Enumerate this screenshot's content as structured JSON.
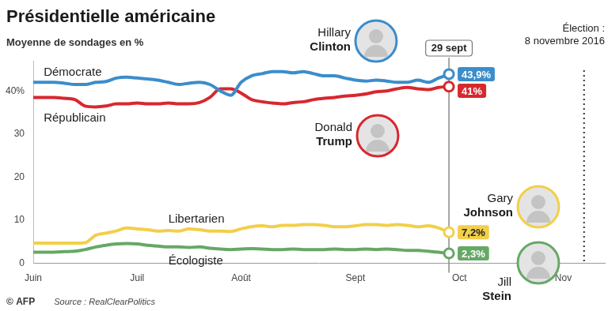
{
  "chart_data": {
    "type": "line",
    "title": "Présidentielle américaine",
    "subtitle": "Moyenne de sondages en %",
    "source": "Source : RealClearPolitics",
    "credit": "© AFP",
    "categories": [
      "Juin",
      null,
      null,
      null,
      null,
      null,
      null,
      null,
      null,
      null,
      "Juil",
      null,
      null,
      null,
      null,
      null,
      null,
      null,
      null,
      null,
      "Août",
      null,
      null,
      null,
      null,
      null,
      null,
      null,
      null,
      null,
      null,
      "Sept",
      null,
      null,
      null,
      null,
      null,
      null,
      null,
      null,
      null,
      "Oct",
      null,
      null,
      null,
      null,
      null,
      null,
      null,
      null,
      null,
      "Nov",
      null,
      null,
      null,
      null
    ],
    "ylim": [
      0,
      47
    ],
    "yticks": [
      0,
      10,
      20,
      30,
      {
        "value": 40,
        "label": "40%"
      }
    ],
    "grid": false,
    "data_labels": true,
    "annotations": [
      {
        "text": "29 sept",
        "index": 40,
        "line_style": "solid"
      },
      {
        "text": "Élection : 8 novembre 2016",
        "index": 53,
        "line_style": "dotted"
      }
    ],
    "series": [
      {
        "name": "Démocrate",
        "candidate": "Hillary Clinton",
        "color": "#3b8dcb",
        "values": [
          42.0,
          42.0,
          42.0,
          41.8,
          41.5,
          41.5,
          42.0,
          42.2,
          43.0,
          43.2,
          43.0,
          42.8,
          42.5,
          42.0,
          41.5,
          41.8,
          42.0,
          41.5,
          40.0,
          39.0,
          42.0,
          43.5,
          44.0,
          44.5,
          44.5,
          44.2,
          44.5,
          44.0,
          43.5,
          43.5,
          43.0,
          42.5,
          42.3,
          42.5,
          42.3,
          42.0,
          42.0,
          42.5,
          42.0,
          43.0,
          43.9,
          null,
          null,
          null,
          null,
          null,
          null,
          null,
          null,
          null,
          null,
          null,
          null,
          null,
          null,
          null
        ],
        "value_labels": [
          null,
          null,
          null,
          null,
          null,
          null,
          null,
          null,
          null,
          null,
          null,
          null,
          null,
          null,
          null,
          null,
          null,
          null,
          null,
          null,
          null,
          null,
          null,
          null,
          null,
          null,
          null,
          null,
          null,
          null,
          null,
          null,
          null,
          null,
          null,
          null,
          null,
          null,
          null,
          null,
          "43,9%",
          null,
          null,
          null,
          null,
          null,
          null,
          null,
          null,
          null,
          null,
          null,
          null,
          null,
          null,
          null
        ]
      },
      {
        "name": "Républicain",
        "candidate": "Donald Trump",
        "color": "#d7282f",
        "values": [
          38.5,
          38.5,
          38.5,
          38.3,
          38.0,
          36.5,
          36.3,
          36.5,
          37.0,
          37.0,
          37.2,
          37.0,
          37.0,
          37.2,
          37.0,
          37.0,
          37.3,
          38.5,
          40.5,
          40.5,
          39.5,
          38.0,
          37.5,
          37.2,
          37.0,
          37.3,
          37.5,
          38.0,
          38.3,
          38.5,
          38.8,
          39.0,
          39.3,
          39.8,
          40.0,
          40.5,
          40.8,
          40.5,
          40.3,
          40.8,
          41.0,
          null,
          null,
          null,
          null,
          null,
          null,
          null,
          null,
          null,
          null,
          null,
          null,
          null,
          null,
          null
        ],
        "value_labels": [
          null,
          null,
          null,
          null,
          null,
          null,
          null,
          null,
          null,
          null,
          null,
          null,
          null,
          null,
          null,
          null,
          null,
          null,
          null,
          null,
          null,
          null,
          null,
          null,
          null,
          null,
          null,
          null,
          null,
          null,
          null,
          null,
          null,
          null,
          null,
          null,
          null,
          null,
          null,
          null,
          "41%",
          null,
          null,
          null,
          null,
          null,
          null,
          null,
          null,
          null,
          null,
          null,
          null,
          null,
          null,
          null
        ]
      },
      {
        "name": "Libertarien",
        "candidate": "Gary Johnson",
        "color": "#f2cf4a",
        "values": [
          4.7,
          4.7,
          4.7,
          4.7,
          4.7,
          4.8,
          6.5,
          7.0,
          7.5,
          8.2,
          8.0,
          7.8,
          7.5,
          7.6,
          7.5,
          8.0,
          7.8,
          7.5,
          7.5,
          7.4,
          8.0,
          8.5,
          8.7,
          8.5,
          8.8,
          8.8,
          9.0,
          9.0,
          8.8,
          8.5,
          8.5,
          8.7,
          9.0,
          9.0,
          8.8,
          9.0,
          8.8,
          8.5,
          8.7,
          8.2,
          7.2,
          null,
          null,
          null,
          null,
          null,
          null,
          null,
          null,
          null,
          null,
          null,
          null,
          null,
          null,
          null
        ],
        "value_labels": [
          null,
          null,
          null,
          null,
          null,
          null,
          null,
          null,
          null,
          null,
          null,
          null,
          null,
          null,
          null,
          null,
          null,
          null,
          null,
          null,
          null,
          null,
          null,
          null,
          null,
          null,
          null,
          null,
          null,
          null,
          null,
          null,
          null,
          null,
          null,
          null,
          null,
          null,
          null,
          null,
          "7,2%",
          null,
          null,
          null,
          null,
          null,
          null,
          null,
          null,
          null,
          null,
          null,
          null,
          null,
          null,
          null
        ]
      },
      {
        "name": "Écologiste",
        "candidate": "Jill Stein",
        "color": "#66a866",
        "values": [
          2.6,
          2.6,
          2.6,
          2.7,
          2.8,
          3.2,
          3.8,
          4.2,
          4.5,
          4.6,
          4.5,
          4.2,
          4.0,
          3.8,
          3.8,
          3.7,
          3.8,
          3.5,
          3.3,
          3.2,
          3.3,
          3.4,
          3.3,
          3.2,
          3.2,
          3.3,
          3.2,
          3.2,
          3.2,
          3.3,
          3.2,
          3.2,
          3.3,
          3.2,
          3.3,
          3.2,
          3.0,
          3.0,
          2.8,
          2.6,
          2.3,
          null,
          null,
          null,
          null,
          null,
          null,
          null,
          null,
          null,
          null,
          null,
          null,
          null,
          null,
          null
        ],
        "value_labels": [
          null,
          null,
          null,
          null,
          null,
          null,
          null,
          null,
          null,
          null,
          null,
          null,
          null,
          null,
          null,
          null,
          null,
          null,
          null,
          null,
          null,
          null,
          null,
          null,
          null,
          null,
          null,
          null,
          null,
          null,
          null,
          null,
          null,
          null,
          null,
          null,
          null,
          null,
          null,
          null,
          "2,3%",
          null,
          null,
          null,
          null,
          null,
          null,
          null,
          null,
          null,
          null,
          null,
          null,
          null,
          null,
          null
        ]
      }
    ]
  }
}
